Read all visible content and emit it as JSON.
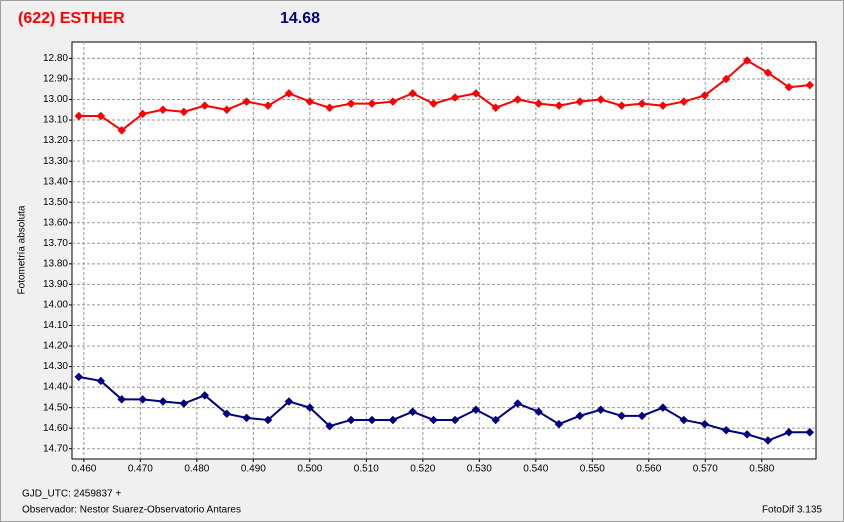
{
  "chart_data": {
    "type": "line",
    "title": "(622) ESTHER",
    "subtitle": "14.68",
    "y_label": "Fotometría absoluta",
    "footer_left_1": "GJD_UTC: 2459837 +",
    "footer_left_2": "Observador: Nestor Suarez-Observatorio Antares",
    "footer_right": "FotoDif 3.135",
    "x": [
      0.4591,
      0.463,
      0.4667,
      0.4704,
      0.474,
      0.4777,
      0.4814,
      0.4853,
      0.4888,
      0.4926,
      0.4963,
      0.5,
      0.5035,
      0.5073,
      0.511,
      0.5147,
      0.5182,
      0.5219,
      0.5257,
      0.5294,
      0.5329,
      0.5368,
      0.5405,
      0.5441,
      0.5478,
      0.5515,
      0.5552,
      0.5588,
      0.5625,
      0.5662,
      0.5699,
      0.5737,
      0.5774,
      0.5811,
      0.5848,
      0.5885
    ],
    "series": [
      {
        "color": "#ff0000",
        "values": [
          13.08,
          13.08,
          13.15,
          13.07,
          13.05,
          13.06,
          13.03,
          13.05,
          13.01,
          13.03,
          12.97,
          13.01,
          13.04,
          13.02,
          13.02,
          13.01,
          12.97,
          13.02,
          12.99,
          12.97,
          13.04,
          13.0,
          13.02,
          13.03,
          13.01,
          13.0,
          13.03,
          13.02,
          13.03,
          13.01,
          12.98,
          12.9,
          12.81,
          12.87,
          12.94,
          12.93
        ]
      },
      {
        "color": "#000080",
        "values": [
          14.35,
          14.37,
          14.46,
          14.46,
          14.47,
          14.48,
          14.44,
          14.53,
          14.55,
          14.56,
          14.47,
          14.5,
          14.59,
          14.56,
          14.56,
          14.56,
          14.52,
          14.56,
          14.56,
          14.51,
          14.56,
          14.48,
          14.52,
          14.58,
          14.54,
          14.51,
          14.54,
          14.54,
          14.5,
          14.56,
          14.58,
          14.61,
          14.63,
          14.66,
          14.62,
          14.62
        ]
      }
    ],
    "xlim": [
      0.4579,
      0.5896
    ],
    "ylim": [
      12.72,
      14.75
    ],
    "y_inverted": true,
    "grid": true,
    "xticks": [
      {
        "value": 0.46,
        "label": "0.460"
      },
      {
        "value": 0.47,
        "label": "0.470"
      },
      {
        "value": 0.48,
        "label": "0.480"
      },
      {
        "value": 0.49,
        "label": "0.490"
      },
      {
        "value": 0.5,
        "label": "0.500"
      },
      {
        "value": 0.51,
        "label": "0.510"
      },
      {
        "value": 0.52,
        "label": "0.520"
      },
      {
        "value": 0.53,
        "label": "0.530"
      },
      {
        "value": 0.54,
        "label": "0.540"
      },
      {
        "value": 0.55,
        "label": "0.550"
      },
      {
        "value": 0.56,
        "label": "0.560"
      },
      {
        "value": 0.57,
        "label": "0.570"
      },
      {
        "value": 0.58,
        "label": "0.580"
      }
    ],
    "yticks": [
      {
        "value": 12.8,
        "label": "12.80"
      },
      {
        "value": 12.9,
        "label": "12.90"
      },
      {
        "value": 13.0,
        "label": "13.00"
      },
      {
        "value": 13.1,
        "label": "13.10"
      },
      {
        "value": 13.2,
        "label": "13.20"
      },
      {
        "value": 13.3,
        "label": "13.30"
      },
      {
        "value": 13.4,
        "label": "13.40"
      },
      {
        "value": 13.5,
        "label": "13.50"
      },
      {
        "value": 13.6,
        "label": "13.60"
      },
      {
        "value": 13.7,
        "label": "13.70"
      },
      {
        "value": 13.8,
        "label": "13.80"
      },
      {
        "value": 13.9,
        "label": "13.90"
      },
      {
        "value": 14.0,
        "label": "14.00"
      },
      {
        "value": 14.1,
        "label": "14.10"
      },
      {
        "value": 14.2,
        "label": "14.20"
      },
      {
        "value": 14.3,
        "label": "14.30"
      },
      {
        "value": 14.4,
        "label": "14.40"
      },
      {
        "value": 14.5,
        "label": "14.50"
      },
      {
        "value": 14.6,
        "label": "14.60"
      },
      {
        "value": 14.7,
        "label": "14.70"
      }
    ]
  }
}
